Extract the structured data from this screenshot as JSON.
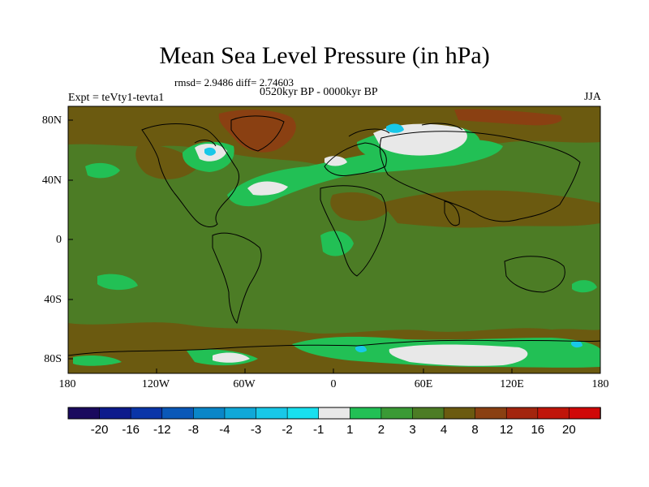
{
  "map": {
    "title": "Mean Sea Level Pressure (in hPa)",
    "stats": "rmsd= 2.9486 diff= 2.74603",
    "period": "0520kyr BP - 0000kyr BP",
    "experiment": "Expt = teVty1-tevta1",
    "season": "JJA",
    "lat_labels": [
      "80N",
      "40N",
      "0",
      "40S",
      "80S"
    ],
    "lon_labels": [
      "180",
      "120W",
      "60W",
      "0",
      "60E",
      "120E",
      "180"
    ]
  },
  "colorbar": {
    "labels": [
      "-20",
      "-16",
      "-12",
      "-8",
      "-4",
      "-3",
      "-2",
      "-1",
      "1",
      "2",
      "3",
      "4",
      "8",
      "12",
      "16",
      "20"
    ],
    "colors": [
      "#1a0a5e",
      "#0d1a8c",
      "#0a35a8",
      "#0a58b8",
      "#0a86c8",
      "#10a8d8",
      "#18c8e8",
      "#18e0ef",
      "#e8e8e8",
      "#22c055",
      "#3a9a35",
      "#4c7c25",
      "#6b5a10",
      "#8a4012",
      "#a3250e",
      "#c0150a",
      "#d00808"
    ]
  },
  "colors": {
    "ocean": "#4c7c25",
    "land_high": "#6b5a10",
    "arctic": "#8a4012",
    "green": "#22c055",
    "white": "#e8e8e8",
    "cyan": "#18c8e8"
  }
}
